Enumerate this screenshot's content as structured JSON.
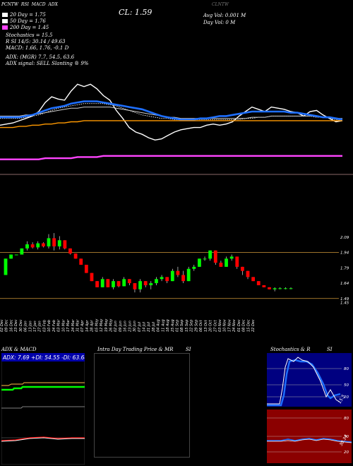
{
  "header": {
    "top_line": [
      "PCNTW",
      "RSI",
      "MACD",
      "ADX"
    ],
    "cl_label": "CL: 1.59",
    "avg_vol": "Avg Vol: 0.001  M",
    "day_vol": "Day Vol: 0   M",
    "title_faded": "CLNTW"
  },
  "legend": [
    {
      "label": "20  Day = 1.75",
      "color": "#ffffff"
    },
    {
      "label": "50  Day = 1.76",
      "color": "#ffffff"
    },
    {
      "label": "200  Day = 1.45",
      "color": "#ff44ff"
    }
  ],
  "info_lines": [
    "Stochastics = 15.5",
    "R        SI 14/5: 30.14 / 49.63",
    "MACD: 1.66,  1.76,  -0.1 D"
  ],
  "adx_lines": [
    "ADX:                          (MGR) 7.7,  54.5,  63.6",
    "ADX  signal: SELL  Slanting ® 9%"
  ],
  "price_ticks": [
    "2.09",
    "1.94",
    "1.79",
    "1.64",
    "1.49",
    "1.45"
  ],
  "date_labels": [
    "02 Dec",
    "09 Dec",
    "16 Dec",
    "23 Dec",
    "30 Dec",
    "06 Jan",
    "13 Jan",
    "17 Jan",
    "27 Jan",
    "03 Feb",
    "10 Feb",
    "24 Feb",
    "03 Mar",
    "10 Mar",
    "17 Mar",
    "24 Mar",
    "31 Mar",
    "07 Apr",
    "14 Apr",
    "28 Apr",
    "05 May",
    "12 May",
    "19 May",
    "26 May",
    "02 Jun",
    "09 Jun",
    "16 Jun",
    "23 Jun",
    "30 Jun",
    "07 Jul",
    "14 Jul",
    "21 Jul",
    "28 Jul",
    "04 Aug",
    "11 Aug",
    "18 Aug",
    "25 Aug",
    "01 Sep",
    "08 Sep",
    "15 Sep",
    "22 Sep",
    "29 Sep",
    "06 Oct",
    "13 Oct",
    "20 Oct",
    "27 Oct",
    "03 Nov",
    "10 Nov",
    "17 Nov",
    "24 Nov",
    "01 Dec",
    "08 Dec",
    "15 Dec",
    "22 Dec"
  ],
  "bottom": {
    "adx_title": "ADX  & MACD",
    "adx_values": "ADX: 7.69  +DI: 54.55  -DI: 63.64",
    "intraday_title": "Intra  Day Trading Price  & MR",
    "si_label": "SI",
    "stoch_title": "Stochastics & R",
    "stoch_si": "SI",
    "stoch_ticks": [
      "80",
      "50",
      "20"
    ],
    "stoch_value": "15.5",
    "rsi_ticks": [
      "80",
      "50",
      "20"
    ],
    "rsi_value": "30.14"
  },
  "colors": {
    "up": "#00ff00",
    "down": "#ff0000",
    "ema_blue": "#1e6fff",
    "orange": "#ff9900",
    "magenta": "#ff44ff",
    "gold": "#d29a3a",
    "rsi_bg": "#8b0000",
    "stoch_bg": "#000080"
  },
  "chart_data": [
    {
      "type": "line",
      "name": "moving averages",
      "x_count": 54,
      "series": [
        {
          "values": [
            1.72,
            1.73,
            1.74,
            1.76,
            1.78,
            1.8,
            1.84,
            1.92,
            1.97,
            1.95,
            1.94,
            2.02,
            2.08,
            2.06,
            2.08,
            2.04,
            1.98,
            1.94,
            1.85,
            1.78,
            1.7,
            1.66,
            1.64,
            1.61,
            1.59,
            1.6,
            1.63,
            1.66,
            1.68,
            1.69,
            1.7,
            1.7,
            1.72,
            1.73,
            1.72,
            1.73,
            1.75,
            1.8,
            1.84,
            1.88,
            1.86,
            1.84,
            1.88,
            1.87,
            1.86,
            1.84,
            1.83,
            1.8,
            1.84,
            1.85,
            1.81,
            1.78,
            1.75,
            1.76
          ]
        },
        {
          "values": [
            1.78,
            1.78,
            1.78,
            1.78,
            1.79,
            1.8,
            1.81,
            1.83,
            1.85,
            1.87,
            1.88,
            1.89,
            1.9,
            1.91,
            1.91,
            1.91,
            1.91,
            1.9,
            1.89,
            1.87,
            1.85,
            1.83,
            1.81,
            1.8,
            1.79,
            1.78,
            1.78,
            1.77,
            1.77,
            1.77,
            1.77,
            1.77,
            1.77,
            1.77,
            1.77,
            1.77,
            1.77,
            1.77,
            1.78,
            1.78,
            1.79,
            1.79,
            1.8,
            1.8,
            1.8,
            1.8,
            1.8,
            1.8,
            1.8,
            1.79,
            1.79,
            1.78,
            1.77,
            1.76
          ]
        },
        {
          "values": [
            1.8,
            1.8,
            1.8,
            1.8,
            1.81,
            1.81,
            1.82,
            1.83,
            1.84,
            1.85,
            1.86,
            1.87,
            1.87,
            1.88,
            1.88,
            1.88,
            1.88,
            1.88,
            1.87,
            1.86,
            1.85,
            1.84,
            1.83,
            1.82,
            1.81,
            1.8,
            1.79,
            1.79,
            1.78,
            1.78,
            1.78,
            1.78,
            1.78,
            1.78,
            1.78,
            1.78,
            1.78,
            1.78,
            1.78,
            1.79,
            1.79,
            1.79,
            1.8,
            1.8,
            1.8,
            1.8,
            1.8,
            1.8,
            1.8,
            1.8,
            1.79,
            1.79,
            1.78,
            1.78
          ]
        },
        {
          "values": [
            1.79,
            1.79,
            1.79,
            1.79,
            1.8,
            1.81,
            1.83,
            1.85,
            1.87,
            1.88,
            1.89,
            1.91,
            1.92,
            1.93,
            1.93,
            1.93,
            1.92,
            1.91,
            1.9,
            1.89,
            1.88,
            1.87,
            1.86,
            1.84,
            1.82,
            1.8,
            1.79,
            1.78,
            1.77,
            1.77,
            1.77,
            1.78,
            1.78,
            1.79,
            1.8,
            1.8,
            1.81,
            1.82,
            1.83,
            1.84,
            1.84,
            1.84,
            1.84,
            1.84,
            1.84,
            1.83,
            1.83,
            1.82,
            1.81,
            1.8,
            1.79,
            1.79,
            1.78,
            1.77
          ]
        },
        {
          "values": [
            1.7,
            1.7,
            1.7,
            1.71,
            1.71,
            1.72,
            1.72,
            1.73,
            1.73,
            1.74,
            1.74,
            1.75,
            1.75,
            1.76,
            1.76,
            1.76,
            1.76,
            1.76,
            1.76,
            1.76,
            1.76,
            1.76,
            1.76,
            1.76,
            1.76,
            1.76,
            1.76,
            1.76,
            1.76,
            1.76,
            1.76,
            1.76,
            1.76,
            1.76,
            1.76,
            1.76,
            1.76,
            1.76,
            1.76,
            1.76,
            1.76,
            1.76,
            1.76,
            1.76,
            1.76,
            1.76,
            1.76,
            1.76,
            1.76,
            1.76,
            1.76,
            1.76,
            1.76,
            1.76
          ]
        },
        {
          "values": [
            1.42,
            1.42,
            1.42,
            1.42,
            1.42,
            1.42,
            1.42,
            1.43,
            1.43,
            1.43,
            1.43,
            1.43,
            1.44,
            1.44,
            1.44,
            1.44,
            1.45,
            1.45,
            1.45,
            1.45,
            1.45,
            1.45,
            1.45,
            1.45,
            1.45,
            1.45,
            1.45,
            1.45,
            1.45,
            1.45,
            1.45,
            1.45,
            1.45,
            1.45,
            1.45,
            1.45,
            1.45,
            1.45,
            1.45,
            1.45,
            1.45,
            1.45,
            1.45,
            1.45,
            1.45,
            1.45,
            1.45,
            1.45,
            1.45,
            1.45,
            1.45,
            1.45,
            1.45,
            1.45
          ]
        }
      ],
      "ylim": [
        1.3,
        2.2
      ]
    },
    {
      "type": "candlestick",
      "x_count": 54,
      "ylim": [
        1.44,
        2.2
      ],
      "candles": [
        [
          1.72,
          1.88,
          1.72,
          1.88
        ],
        [
          1.88,
          1.92,
          1.88,
          1.92
        ],
        [
          1.92,
          1.92,
          1.92,
          1.92
        ],
        [
          1.92,
          1.98,
          1.92,
          1.98
        ],
        [
          1.98,
          2.05,
          1.96,
          2.02
        ],
        [
          2.02,
          2.04,
          1.98,
          1.99
        ],
        [
          1.99,
          2.05,
          1.97,
          2.03
        ],
        [
          2.03,
          2.04,
          1.99,
          2.0
        ],
        [
          2.0,
          2.12,
          1.98,
          2.08
        ],
        [
          2.08,
          2.13,
          1.96,
          2.0
        ],
        [
          2.0,
          2.1,
          1.97,
          2.06
        ],
        [
          2.06,
          2.06,
          1.97,
          1.98
        ],
        [
          1.98,
          1.98,
          1.92,
          1.93
        ],
        [
          1.93,
          1.93,
          1.88,
          1.88
        ],
        [
          1.88,
          1.88,
          1.82,
          1.82
        ],
        [
          1.82,
          1.82,
          1.74,
          1.74
        ],
        [
          1.74,
          1.74,
          1.66,
          1.66
        ],
        [
          1.66,
          1.66,
          1.6,
          1.6
        ],
        [
          1.6,
          1.7,
          1.6,
          1.68
        ],
        [
          1.68,
          1.68,
          1.6,
          1.6
        ],
        [
          1.6,
          1.68,
          1.58,
          1.66
        ],
        [
          1.66,
          1.66,
          1.6,
          1.61
        ],
        [
          1.61,
          1.7,
          1.61,
          1.68
        ],
        [
          1.68,
          1.68,
          1.62,
          1.64
        ],
        [
          1.64,
          1.64,
          1.55,
          1.58
        ],
        [
          1.58,
          1.68,
          1.55,
          1.66
        ],
        [
          1.66,
          1.66,
          1.6,
          1.62
        ],
        [
          1.62,
          1.66,
          1.58,
          1.64
        ],
        [
          1.64,
          1.7,
          1.62,
          1.68
        ],
        [
          1.68,
          1.72,
          1.66,
          1.7
        ],
        [
          1.7,
          1.7,
          1.64,
          1.66
        ],
        [
          1.66,
          1.78,
          1.66,
          1.76
        ],
        [
          1.76,
          1.8,
          1.7,
          1.72
        ],
        [
          1.72,
          1.76,
          1.64,
          1.66
        ],
        [
          1.66,
          1.8,
          1.66,
          1.78
        ],
        [
          1.78,
          1.82,
          1.76,
          1.8
        ],
        [
          1.8,
          1.88,
          1.8,
          1.88
        ],
        [
          1.88,
          1.9,
          1.86,
          1.88
        ],
        [
          1.88,
          1.96,
          1.86,
          1.96
        ],
        [
          1.96,
          1.96,
          1.82,
          1.84
        ],
        [
          1.84,
          1.86,
          1.8,
          1.8
        ],
        [
          1.8,
          1.9,
          1.8,
          1.88
        ],
        [
          1.88,
          1.92,
          1.86,
          1.9
        ],
        [
          1.9,
          1.9,
          1.78,
          1.8
        ],
        [
          1.8,
          1.8,
          1.72,
          1.76
        ],
        [
          1.76,
          1.76,
          1.68,
          1.7
        ],
        [
          1.7,
          1.7,
          1.66,
          1.66
        ],
        [
          1.66,
          1.66,
          1.62,
          1.62
        ],
        [
          1.62,
          1.62,
          1.6,
          1.6
        ],
        [
          1.6,
          1.6,
          1.58,
          1.58
        ],
        [
          1.58,
          1.6,
          1.56,
          1.59
        ],
        [
          1.59,
          1.6,
          1.58,
          1.59
        ],
        [
          1.59,
          1.6,
          1.58,
          1.59
        ],
        [
          1.59,
          1.6,
          1.58,
          1.59
        ]
      ]
    }
  ]
}
